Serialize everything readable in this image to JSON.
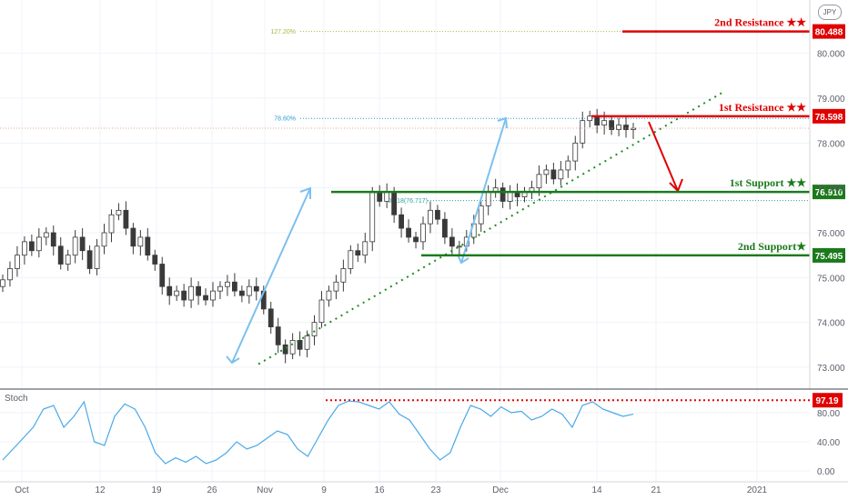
{
  "currency": "JPY",
  "stoch_label": "Stoch",
  "chart_data": {
    "type": "candlestick",
    "x_ticks": [
      "Oct",
      "12",
      "19",
      "26",
      "Nov",
      "9",
      "16",
      "23",
      "Dec",
      "14",
      "21",
      "2021"
    ],
    "y_ticks": [
      "73.000",
      "74.000",
      "75.000",
      "76.000",
      "77.000",
      "78.000",
      "79.000",
      "80.000"
    ],
    "ylim": [
      72.55,
      81.05
    ],
    "levels": [
      {
        "name": "2nd Resistance ★★",
        "value": 80.488,
        "label": "80.488",
        "color": "#e00000"
      },
      {
        "name": "1st Resistance ★★",
        "value": 78.598,
        "label": "78.598",
        "color": "#e00000"
      },
      {
        "name": "1st Support ★★",
        "value": 76.91,
        "label": "76.910",
        "color": "#1b7a1b"
      },
      {
        "name": "2nd Support★",
        "value": 75.495,
        "label": "75.495",
        "color": "#1b7a1b"
      }
    ],
    "fib_levels": [
      {
        "label": "127.20%",
        "value": 80.488,
        "color": "#9bbf3b"
      },
      {
        "label": "78.60%",
        "value": 78.55,
        "color": "#2f9bd6"
      },
      {
        "label": "0.618(76.717)",
        "value": 76.717,
        "color": "#2fa39b"
      }
    ],
    "current_price": 78.33,
    "trendline": {
      "start": {
        "date": "Oct 30",
        "value": 73.07
      },
      "end": {
        "date": "Dec 22",
        "value": 79.15
      }
    },
    "candles_close": [
      74.95,
      75.2,
      75.5,
      75.8,
      75.6,
      75.9,
      76.0,
      75.7,
      75.3,
      75.5,
      75.9,
      75.6,
      75.2,
      75.7,
      76.0,
      76.4,
      76.5,
      76.1,
      75.7,
      75.9,
      75.5,
      75.3,
      74.8,
      74.6,
      74.7,
      74.5,
      74.8,
      74.6,
      74.5,
      74.7,
      74.8,
      74.9,
      74.7,
      74.6,
      74.8,
      74.7,
      74.3,
      73.9,
      73.5,
      73.3,
      73.6,
      73.4,
      73.7,
      74.0,
      74.5,
      74.7,
      74.9,
      75.2,
      75.6,
      75.5,
      75.8,
      76.9,
      76.7,
      76.9,
      76.4,
      76.1,
      75.9,
      75.8,
      76.2,
      76.5,
      76.3,
      75.9,
      75.7,
      75.7,
      75.9,
      76.2,
      76.6,
      76.9,
      77.0,
      76.7,
      76.9,
      76.8,
      76.9,
      77.0,
      77.3,
      77.4,
      77.2,
      77.4,
      77.6,
      78.0,
      78.5,
      78.6,
      78.4,
      78.5,
      78.3,
      78.4,
      78.3,
      78.33
    ],
    "stochastic": {
      "overbought": 97.19,
      "overbought_label": "97.19",
      "y_ticks": [
        "0.00",
        "40.00",
        "80.00"
      ],
      "values": [
        15,
        30,
        45,
        60,
        85,
        90,
        60,
        75,
        95,
        40,
        35,
        75,
        92,
        85,
        60,
        25,
        10,
        18,
        12,
        20,
        10,
        15,
        25,
        40,
        30,
        35,
        45,
        55,
        50,
        30,
        20,
        45,
        70,
        90,
        96,
        95,
        90,
        85,
        95,
        78,
        70,
        50,
        30,
        15,
        25,
        60,
        90,
        85,
        75,
        88,
        80,
        82,
        70,
        75,
        85,
        78,
        60,
        90,
        95,
        85,
        80,
        75,
        78
      ]
    }
  }
}
